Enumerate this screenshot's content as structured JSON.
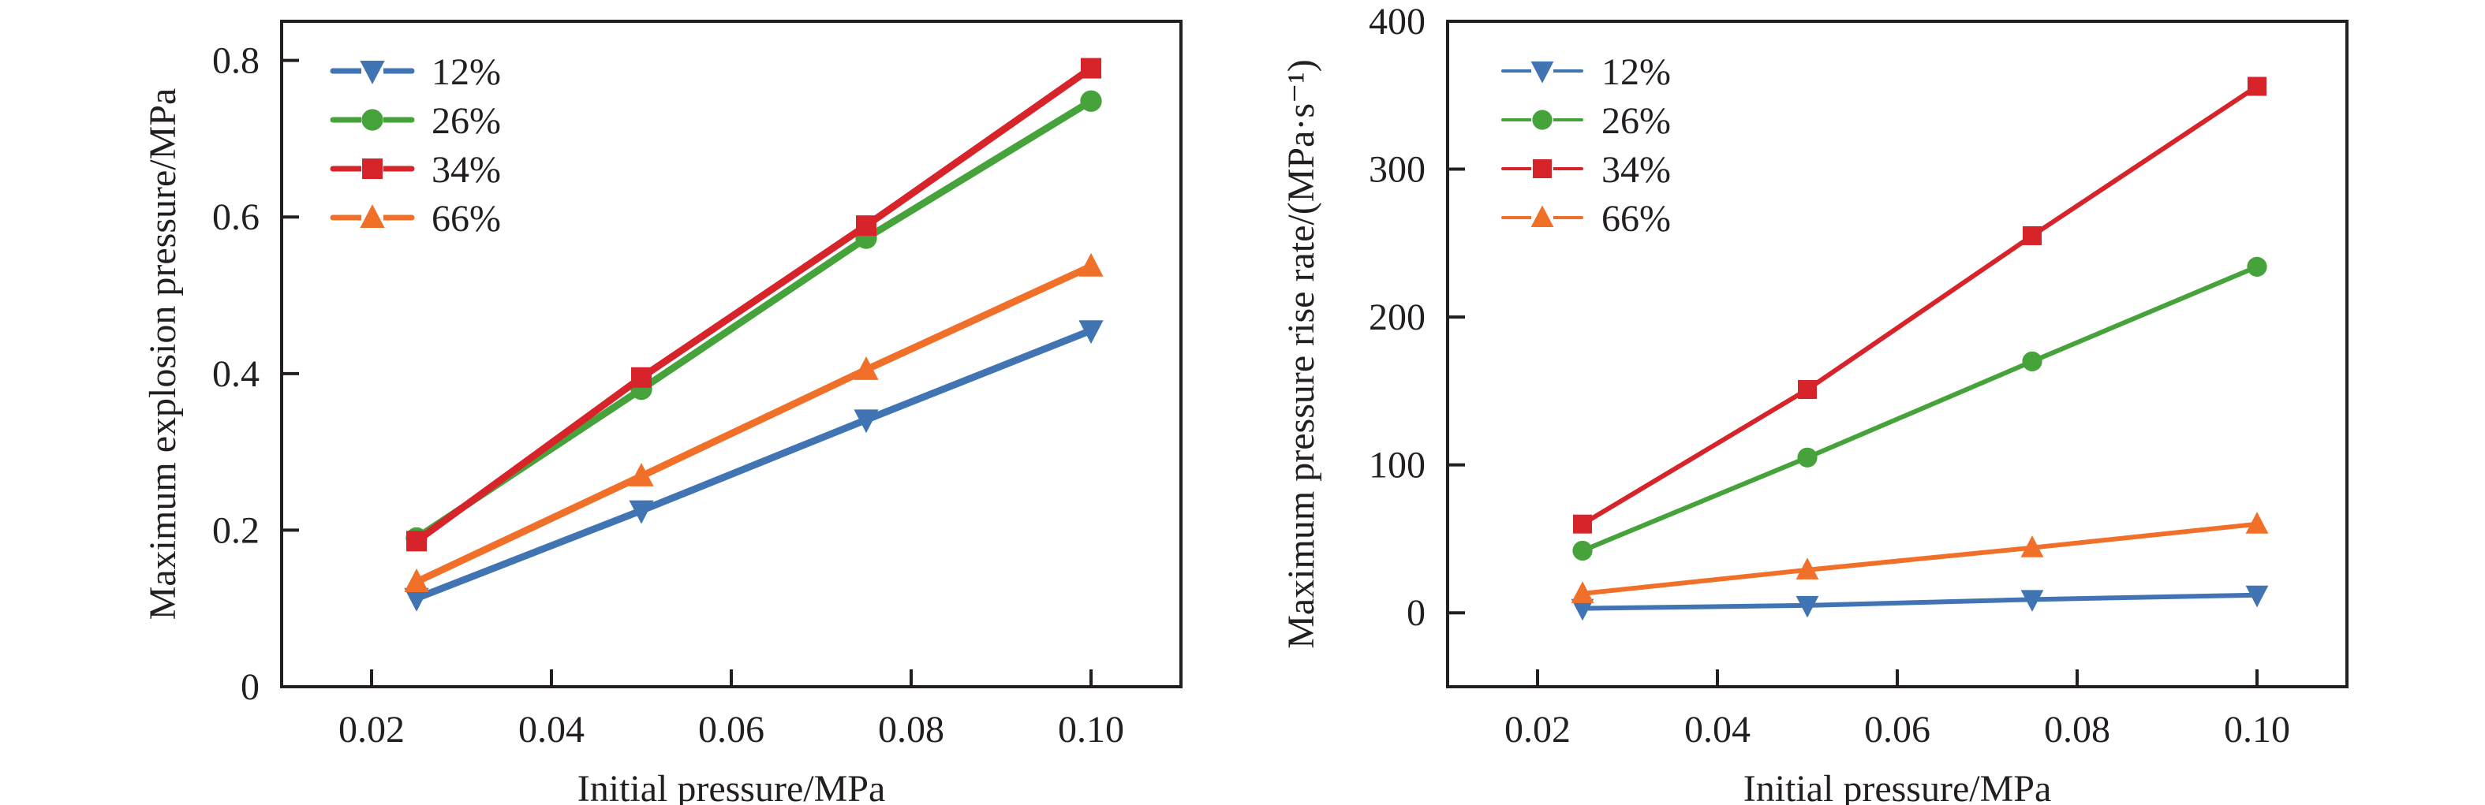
{
  "chart_data": [
    {
      "type": "line",
      "id": "left",
      "title": "",
      "xlabel": "Initial pressure/MPa",
      "ylabel": "Maximum explosion pressure/MPa",
      "xlim": [
        0.01,
        0.11
      ],
      "ylim": [
        0,
        0.85
      ],
      "xticks": [
        0.02,
        0.04,
        0.06,
        0.08,
        0.1
      ],
      "xtick_labels": [
        "0.02",
        "0.04",
        "0.06",
        "0.08",
        "0.10"
      ],
      "yticks": [
        0,
        0.2,
        0.4,
        0.6,
        0.8
      ],
      "ytick_labels": [
        "0",
        "0.2",
        "0.4",
        "0.6",
        "0.8"
      ],
      "grid": false,
      "legend_position": "top-left",
      "x": [
        0.025,
        0.05,
        0.075,
        0.1
      ],
      "series": [
        {
          "name": "12%",
          "color": "#4174b3",
          "marker": "triangle-down",
          "values": [
            0.113,
            0.225,
            0.341,
            0.455
          ]
        },
        {
          "name": "26%",
          "color": "#46a23b",
          "marker": "circle",
          "values": [
            0.19,
            0.38,
            0.573,
            0.748
          ]
        },
        {
          "name": "34%",
          "color": "#d7242a",
          "marker": "square",
          "values": [
            0.186,
            0.395,
            0.589,
            0.79
          ]
        },
        {
          "name": "66%",
          "color": "#f0702a",
          "marker": "triangle-up",
          "values": [
            0.134,
            0.269,
            0.405,
            0.537
          ]
        }
      ]
    },
    {
      "type": "line",
      "id": "right",
      "title": "",
      "xlabel": "Initial pressure/MPa",
      "ylabel": "Maximum pressure rise rate/(MPa·s⁻¹)",
      "xlim": [
        0.01,
        0.11
      ],
      "ylim": [
        -50,
        400
      ],
      "xticks": [
        0.02,
        0.04,
        0.06,
        0.08,
        0.1
      ],
      "xtick_labels": [
        "0.02",
        "0.04",
        "0.06",
        "0.08",
        "0.10"
      ],
      "yticks": [
        0,
        100,
        200,
        300,
        400
      ],
      "ytick_labels": [
        "0",
        "100",
        "200",
        "300",
        "400"
      ],
      "grid": false,
      "legend_position": "top-left",
      "x": [
        0.025,
        0.05,
        0.075,
        0.1
      ],
      "series": [
        {
          "name": "12%",
          "color": "#4174b3",
          "marker": "triangle-down",
          "values": [
            3,
            5,
            9,
            12
          ]
        },
        {
          "name": "26%",
          "color": "#46a23b",
          "marker": "circle",
          "values": [
            42,
            105,
            170,
            234
          ]
        },
        {
          "name": "34%",
          "color": "#d7242a",
          "marker": "square",
          "values": [
            60,
            151,
            255,
            356
          ]
        },
        {
          "name": "66%",
          "color": "#f0702a",
          "marker": "triangle-up",
          "values": [
            13,
            29,
            44,
            60
          ]
        }
      ]
    }
  ]
}
